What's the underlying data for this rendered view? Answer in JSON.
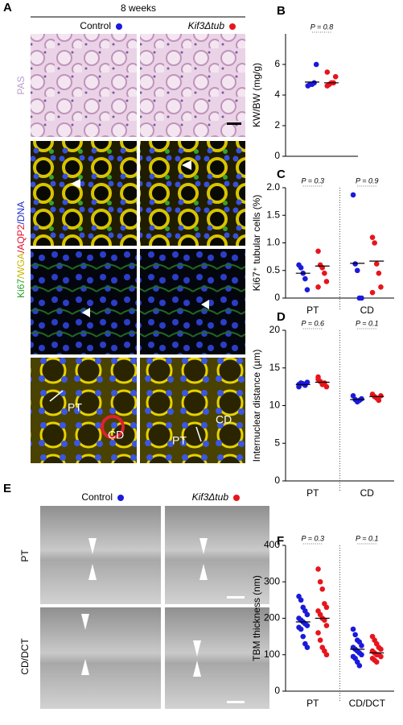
{
  "panels": {
    "A": {
      "letter": "A",
      "title": "8 weeks",
      "legend": [
        "Control",
        "Kif3Δtub"
      ],
      "stain": "PAS",
      "fluor": [
        "Ki67",
        "/WGA",
        "/AQP2",
        "/DNA"
      ],
      "labels": [
        "PT",
        "CD",
        "CD",
        "PT"
      ]
    },
    "E": {
      "letter": "E",
      "legend": [
        "Control",
        "Kif3Δtub"
      ],
      "rows": [
        "PT",
        "CD/DCT"
      ]
    }
  },
  "chart_data": [
    {
      "type": "dotplot",
      "letter": "B",
      "y_label": "KW/BW (mg/g)",
      "categories": [
        null
      ],
      "p_values": [
        "P = 0.8"
      ],
      "ylim": [
        0,
        8
      ],
      "yticks": [
        0,
        2,
        4,
        6
      ],
      "series": [
        {
          "color": "#1a1adb",
          "values": [
            [
              4.6,
              4.7,
              4.7,
              4.8,
              6.0
            ]
          ],
          "means": [
            4.85
          ]
        },
        {
          "color": "#e8141c",
          "values": [
            [
              4.6,
              4.7,
              4.8,
              4.8,
              5.2,
              5.5
            ]
          ],
          "means": [
            4.8
          ]
        }
      ]
    },
    {
      "type": "dotplot",
      "letter": "C",
      "y_label": "Ki67⁺ tubular cells (%)",
      "categories": [
        "PT",
        "CD"
      ],
      "p_values": [
        "P = 0.3",
        "P = 0.9"
      ],
      "ylim": [
        0,
        2
      ],
      "yticks": [
        0,
        0.5,
        {
          "value": 1,
          "label": "1.0"
        },
        1.5,
        {
          "value": 2,
          "label": "2.0"
        }
      ],
      "series": [
        {
          "color": "#1a1adb",
          "values": [
            [
              0.6,
              0.55,
              0.45,
              0.35,
              0.15
            ],
            [
              1.87,
              0.62,
              0.5,
              0,
              0
            ]
          ],
          "means": [
            0.45,
            0.63
          ]
        },
        {
          "color": "#e8141c",
          "values": [
            [
              0.85,
              0.6,
              0.55,
              0.45,
              0.3,
              0.2
            ],
            [
              1.1,
              1.0,
              0.62,
              0.45,
              0.2,
              0.1
            ]
          ],
          "means": [
            0.58,
            0.67
          ]
        }
      ]
    },
    {
      "type": "dotplot",
      "letter": "D",
      "y_label": "Internuclear distance (µm)",
      "categories": [
        "PT",
        "CD"
      ],
      "p_values": [
        "P = 0.6",
        "P = 0.1"
      ],
      "ylim": [
        0,
        20
      ],
      "yticks": [
        0,
        5,
        10,
        15,
        20
      ],
      "series": [
        {
          "color": "#1a1adb",
          "values": [
            [
              12.8,
              13.0,
              12.9,
              12.7,
              13.1,
              12.5
            ],
            [
              11.3,
              10.8,
              10.5,
              10.7,
              10.9
            ]
          ],
          "means": [
            12.8,
            10.8
          ]
        },
        {
          "color": "#e8141c",
          "values": [
            [
              13.5,
              13.2,
              12.8,
              13.0,
              12.5,
              13.8
            ],
            [
              11.5,
              11.2,
              11.0,
              10.7,
              11.3
            ]
          ],
          "means": [
            13.1,
            11.2
          ]
        }
      ]
    },
    {
      "type": "dotplot",
      "letter": "F",
      "y_label": "TBM thickness (nm)",
      "categories": [
        "PT",
        "CD/DCT"
      ],
      "p_values": [
        "P = 0.3",
        "P = 0.1"
      ],
      "ylim": [
        0,
        400
      ],
      "yticks": [
        0,
        100,
        200,
        300,
        400
      ],
      "series": [
        {
          "color": "#1a1adb",
          "values": [
            [
              260,
              250,
              230,
              220,
              210,
              200,
              195,
              190,
              185,
              180,
              175,
              170,
              150,
              130,
              120
            ],
            [
              170,
              155,
              140,
              135,
              125,
              120,
              115,
              110,
              105,
              100,
              95,
              90,
              80,
              70
            ]
          ],
          "means": [
            190,
            115
          ]
        },
        {
          "color": "#e8141c",
          "values": [
            [
              335,
              300,
              280,
              240,
              230,
              220,
              210,
              200,
              195,
              180,
              160,
              140,
              120,
              110,
              100
            ],
            [
              150,
              140,
              130,
              120,
              115,
              110,
              105,
              100,
              100,
              95,
              90,
              85,
              80
            ]
          ],
          "means": [
            200,
            105
          ]
        }
      ]
    }
  ]
}
